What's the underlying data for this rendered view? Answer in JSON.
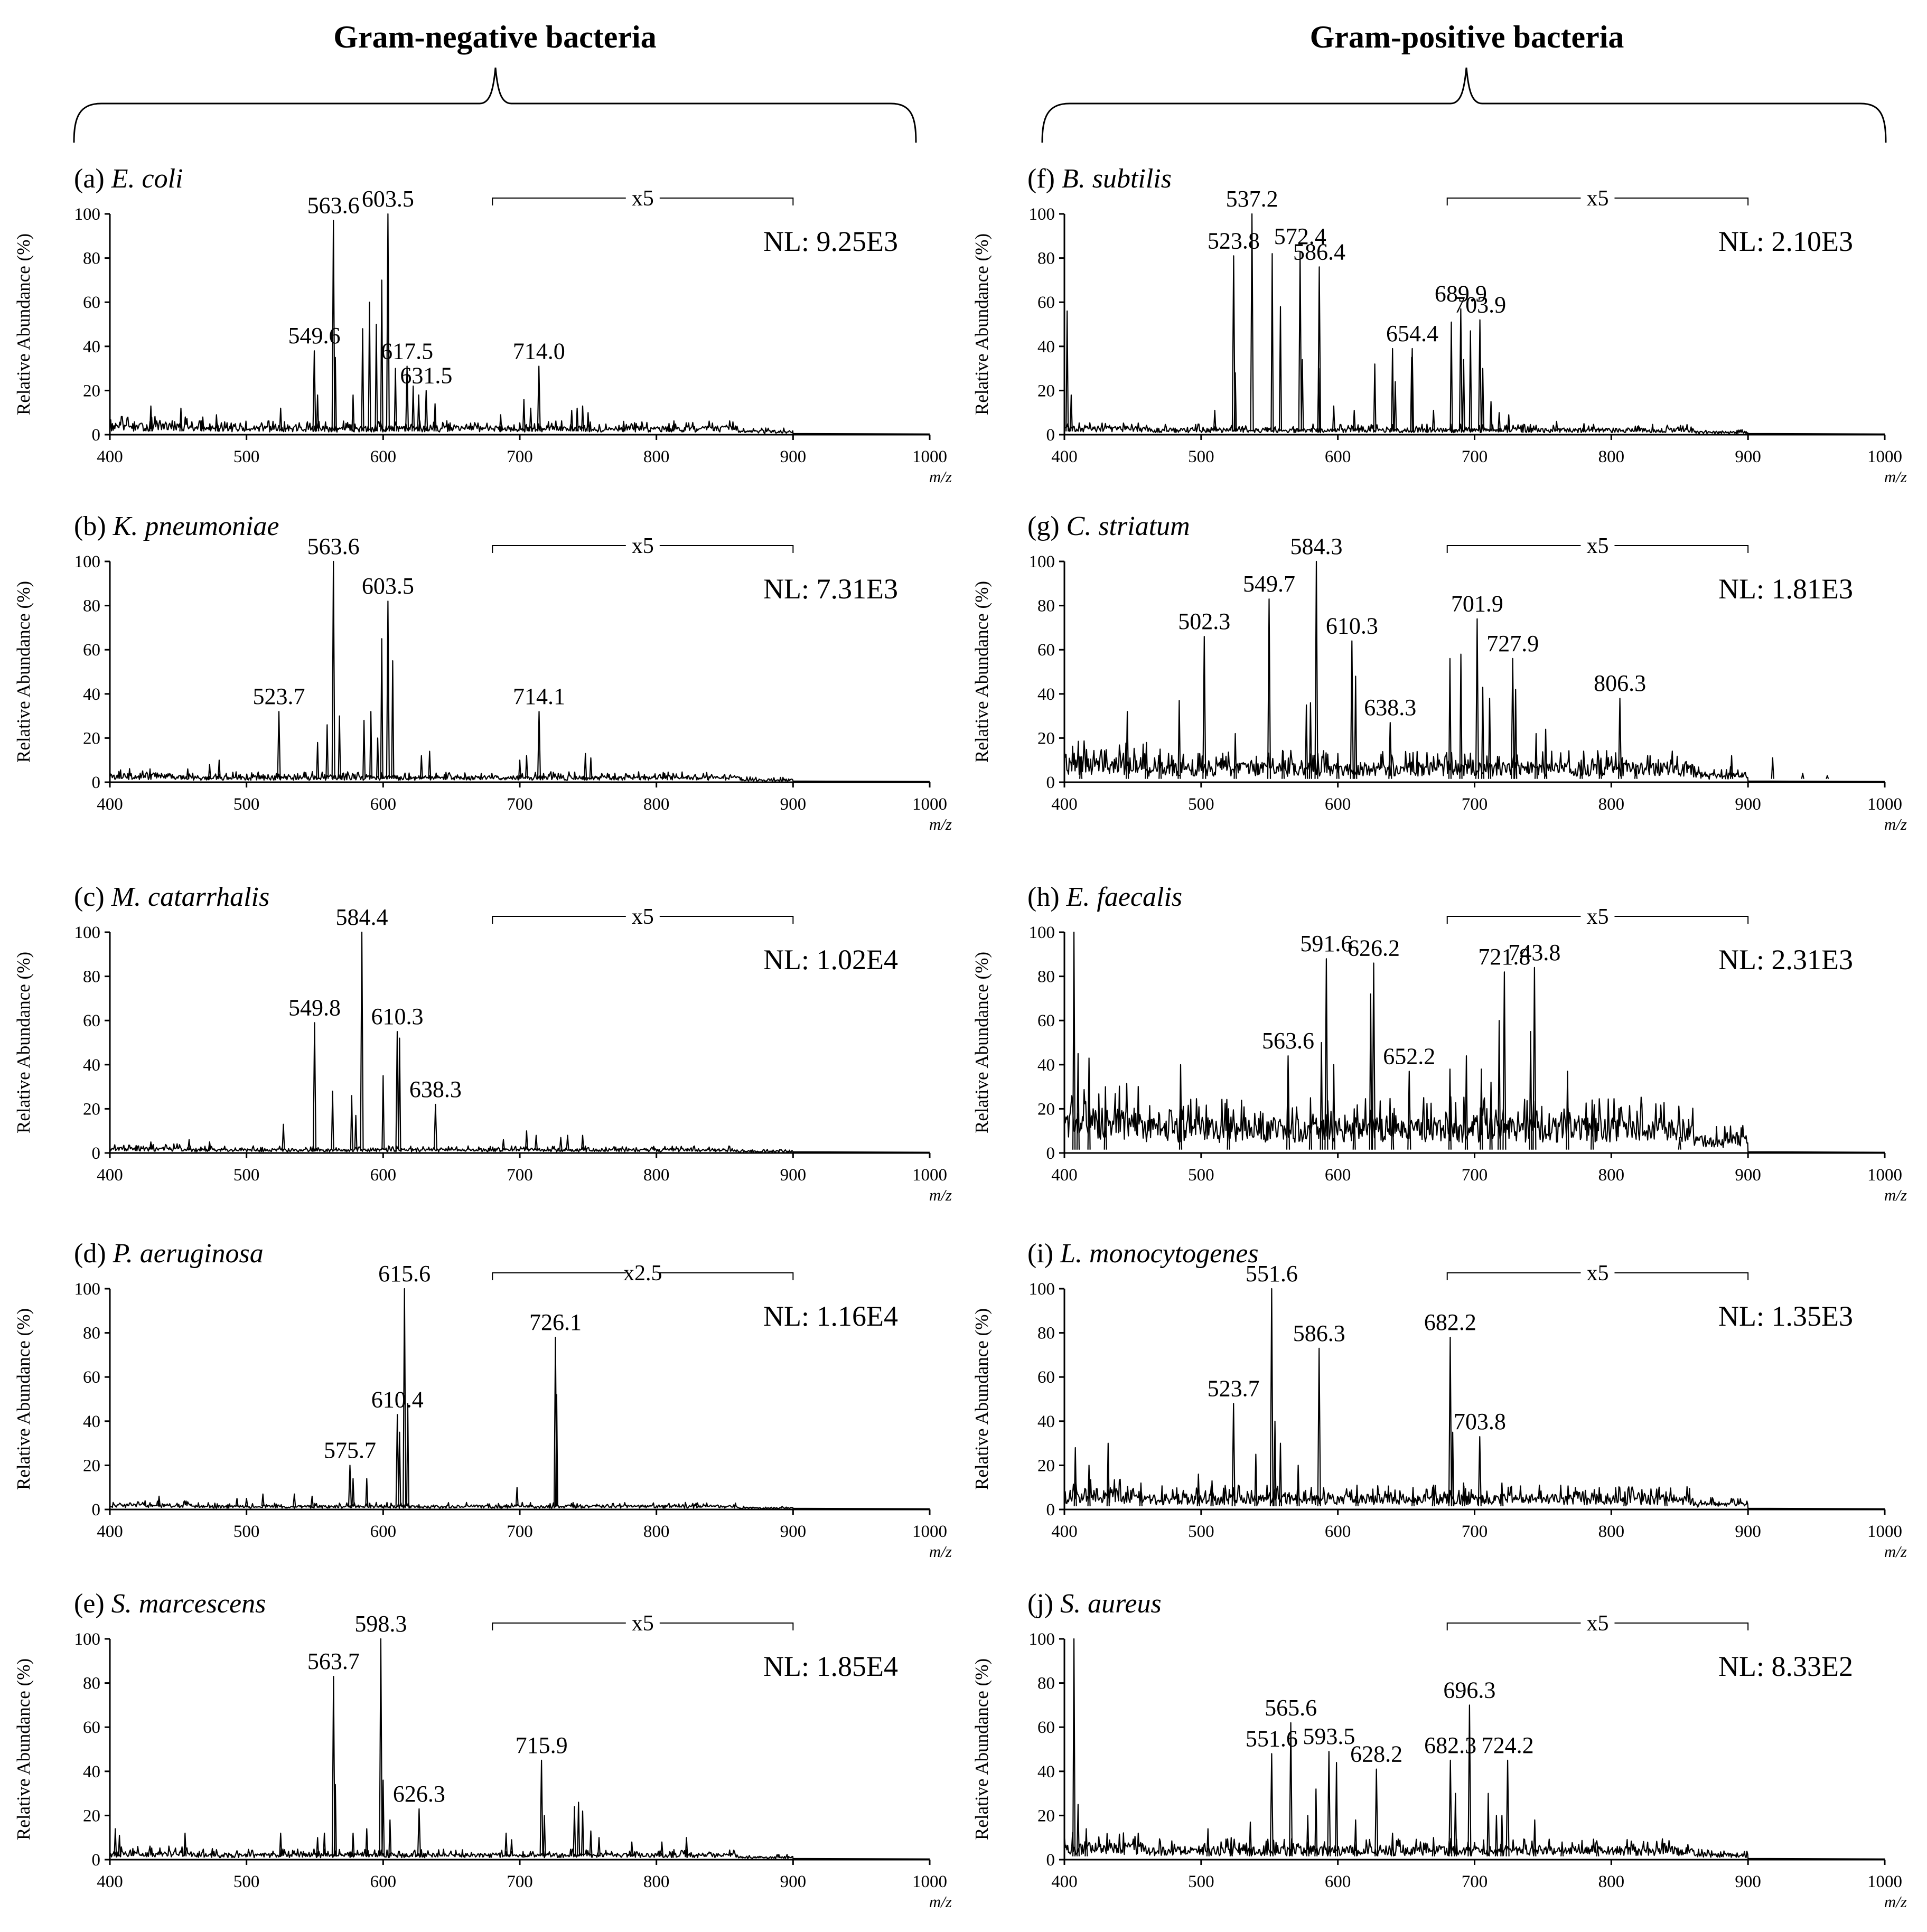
{
  "groups": [
    {
      "title": "Gram-negative bacteria"
    },
    {
      "title": "Gram-positive bacteria"
    }
  ],
  "axis": {
    "x_ticks": [
      "400",
      "500",
      "600",
      "700",
      "800",
      "900",
      "1000"
    ],
    "y_ticks": [
      "0",
      "20",
      "40",
      "60",
      "80",
      "100"
    ],
    "ylabel": "Relative Abundance (%)",
    "xlabel": "m/z",
    "xlim": [
      400,
      1000
    ],
    "ylim": [
      0,
      100
    ]
  },
  "chart_data": [
    {
      "type": "line",
      "panel": "(a)",
      "organism": "E. coli",
      "group": "Gram-negative bacteria",
      "nl": "NL: 9.25E3",
      "magnification": "x5",
      "mag_range": [
        680,
        900
      ],
      "noise": 4,
      "peaks": [
        [
          549.6,
          38,
          "549.6"
        ],
        [
          563.6,
          97,
          "563.6"
        ],
        [
          603.5,
          100,
          "603.5"
        ],
        [
          617.5,
          31,
          "617.5"
        ],
        [
          631.5,
          20,
          "631.5"
        ],
        [
          714.0,
          31,
          "714.0"
        ]
      ],
      "minor": [
        [
          430,
          13
        ],
        [
          452,
          12
        ],
        [
          468,
          8
        ],
        [
          478,
          9
        ],
        [
          525,
          12
        ],
        [
          552,
          18
        ],
        [
          565,
          35
        ],
        [
          578,
          18
        ],
        [
          585,
          48
        ],
        [
          590,
          60
        ],
        [
          595,
          50
        ],
        [
          599,
          70
        ],
        [
          609,
          30
        ],
        [
          622,
          22
        ],
        [
          626,
          18
        ],
        [
          638,
          14
        ],
        [
          686,
          9
        ],
        [
          703,
          16
        ],
        [
          708,
          12
        ],
        [
          738,
          11
        ],
        [
          742,
          12
        ],
        [
          746,
          13
        ],
        [
          750,
          10
        ],
        [
          776,
          6
        ],
        [
          812,
          4
        ]
      ]
    },
    {
      "type": "line",
      "panel": "(b)",
      "organism": "K. pneumoniae",
      "group": "Gram-negative bacteria",
      "nl": "NL: 7.31E3",
      "magnification": "x5",
      "mag_range": [
        680,
        900
      ],
      "noise": 3,
      "peaks": [
        [
          523.7,
          32,
          "523.7"
        ],
        [
          563.6,
          100,
          "563.6"
        ],
        [
          603.5,
          82,
          "603.5"
        ],
        [
          714.1,
          32,
          "714.1"
        ]
      ],
      "minor": [
        [
          457,
          6
        ],
        [
          473,
          8
        ],
        [
          480,
          10
        ],
        [
          552,
          18
        ],
        [
          559,
          26
        ],
        [
          568,
          30
        ],
        [
          586,
          28
        ],
        [
          591,
          32
        ],
        [
          596,
          20
        ],
        [
          599,
          65
        ],
        [
          607,
          55
        ],
        [
          628,
          12
        ],
        [
          634,
          14
        ],
        [
          700,
          10
        ],
        [
          705,
          12
        ],
        [
          748,
          13
        ],
        [
          752,
          11
        ],
        [
          806,
          4
        ]
      ]
    },
    {
      "type": "line",
      "panel": "(c)",
      "organism": "M. catarrhalis",
      "group": "Gram-negative bacteria",
      "nl": "NL: 1.02E4",
      "magnification": "x5",
      "mag_range": [
        680,
        900
      ],
      "noise": 2,
      "peaks": [
        [
          549.8,
          59,
          "549.8"
        ],
        [
          584.4,
          100,
          "584.4"
        ],
        [
          610.3,
          55,
          "610.3"
        ],
        [
          638.3,
          22,
          "638.3"
        ]
      ],
      "minor": [
        [
          430,
          5
        ],
        [
          458,
          6
        ],
        [
          473,
          5
        ],
        [
          527,
          13
        ],
        [
          563,
          28
        ],
        [
          577,
          26
        ],
        [
          580,
          17
        ],
        [
          600,
          35
        ],
        [
          612,
          52
        ],
        [
          688,
          6
        ],
        [
          705,
          10
        ],
        [
          712,
          8
        ],
        [
          730,
          7
        ],
        [
          735,
          8
        ],
        [
          746,
          8
        ],
        [
          798,
          3
        ]
      ]
    },
    {
      "type": "line",
      "panel": "(d)",
      "organism": "P. aeruginosa",
      "group": "Gram-negative bacteria",
      "nl": "NL: 1.16E4",
      "magnification": "x2.5",
      "mag_range": [
        680,
        900
      ],
      "noise": 2,
      "peaks": [
        [
          575.7,
          20,
          "575.7"
        ],
        [
          610.4,
          43,
          "610.4"
        ],
        [
          615.6,
          100,
          "615.6"
        ],
        [
          726.1,
          78,
          "726.1"
        ]
      ],
      "minor": [
        [
          436,
          6
        ],
        [
          493,
          5
        ],
        [
          500,
          5
        ],
        [
          512,
          7
        ],
        [
          535,
          7
        ],
        [
          548,
          6
        ],
        [
          578,
          14
        ],
        [
          588,
          14
        ],
        [
          612,
          35
        ],
        [
          618,
          48
        ],
        [
          698,
          10
        ],
        [
          727,
          52
        ],
        [
          830,
          3
        ]
      ]
    },
    {
      "type": "line",
      "panel": "(e)",
      "organism": "S. marcescens",
      "group": "Gram-negative bacteria",
      "nl": "NL: 1.85E4",
      "magnification": "x5",
      "mag_range": [
        680,
        900
      ],
      "noise": 3,
      "peaks": [
        [
          563.7,
          83,
          "563.7"
        ],
        [
          598.3,
          100,
          "598.3"
        ],
        [
          626.3,
          23,
          "626.3"
        ],
        [
          715.9,
          45,
          "715.9"
        ]
      ],
      "minor": [
        [
          404,
          14
        ],
        [
          407,
          11
        ],
        [
          455,
          12
        ],
        [
          475,
          5
        ],
        [
          525,
          12
        ],
        [
          552,
          10
        ],
        [
          557,
          12
        ],
        [
          565,
          34
        ],
        [
          578,
          12
        ],
        [
          588,
          14
        ],
        [
          600,
          36
        ],
        [
          605,
          18
        ],
        [
          690,
          12
        ],
        [
          694,
          9
        ],
        [
          718,
          20
        ],
        [
          740,
          24
        ],
        [
          743,
          26
        ],
        [
          746,
          22
        ],
        [
          752,
          13
        ],
        [
          758,
          10
        ],
        [
          782,
          8
        ],
        [
          804,
          8
        ],
        [
          822,
          10
        ]
      ]
    },
    {
      "type": "line",
      "panel": "(f)",
      "organism": "B. subtilis",
      "group": "Gram-positive bacteria",
      "nl": "NL: 2.10E3",
      "magnification": "x5",
      "mag_range": [
        680,
        900
      ],
      "noise": 3,
      "peaks": [
        [
          523.8,
          81,
          "523.8"
        ],
        [
          537.2,
          100,
          "537.2"
        ],
        [
          572.4,
          83,
          "572.4"
        ],
        [
          586.4,
          76,
          "586.4"
        ],
        [
          654.4,
          39,
          "654.4"
        ],
        [
          689.9,
          57,
          "689.9"
        ],
        [
          703.9,
          52,
          "703.9"
        ]
      ],
      "minor": [
        [
          402,
          56
        ],
        [
          405,
          18
        ],
        [
          510,
          11
        ],
        [
          525,
          28
        ],
        [
          552,
          82
        ],
        [
          558,
          58
        ],
        [
          574,
          34
        ],
        [
          586,
          30
        ],
        [
          597,
          13
        ],
        [
          612,
          11
        ],
        [
          627,
          32
        ],
        [
          640,
          39
        ],
        [
          642,
          24
        ],
        [
          654,
          35
        ],
        [
          670,
          11
        ],
        [
          683,
          51
        ],
        [
          692,
          34
        ],
        [
          697,
          47
        ],
        [
          706,
          30
        ],
        [
          712,
          15
        ],
        [
          718,
          10
        ],
        [
          725,
          9
        ],
        [
          760,
          6
        ],
        [
          780,
          5
        ],
        [
          820,
          4
        ]
      ]
    },
    {
      "type": "line",
      "panel": "(g)",
      "organism": "C. striatum",
      "group": "Gram-positive bacteria",
      "nl": "NL: 1.81E3",
      "magnification": "x5",
      "mag_range": [
        680,
        900
      ],
      "noise": 9,
      "peaks": [
        [
          502.3,
          66,
          "502.3"
        ],
        [
          549.7,
          83,
          "549.7"
        ],
        [
          584.3,
          100,
          "584.3"
        ],
        [
          610.3,
          64,
          "610.3"
        ],
        [
          638.3,
          27,
          "638.3"
        ],
        [
          701.9,
          74,
          "701.9"
        ],
        [
          727.9,
          56,
          "727.9"
        ],
        [
          806.3,
          38,
          "806.3"
        ]
      ],
      "minor": [
        [
          412,
          10
        ],
        [
          446,
          32
        ],
        [
          460,
          18
        ],
        [
          470,
          15
        ],
        [
          484,
          37
        ],
        [
          525,
          22
        ],
        [
          560,
          14
        ],
        [
          577,
          35
        ],
        [
          580,
          36
        ],
        [
          600,
          13
        ],
        [
          613,
          48
        ],
        [
          682,
          56
        ],
        [
          690,
          58
        ],
        [
          706,
          43
        ],
        [
          711,
          38
        ],
        [
          730,
          42
        ],
        [
          745,
          22
        ],
        [
          752,
          24
        ],
        [
          778,
          10
        ],
        [
          792,
          10
        ],
        [
          818,
          8
        ],
        [
          888,
          12
        ],
        [
          918,
          11
        ],
        [
          940,
          4
        ],
        [
          958,
          3
        ]
      ]
    },
    {
      "type": "line",
      "panel": "(h)",
      "organism": "E. faecalis",
      "group": "Gram-positive bacteria",
      "nl": "NL: 2.31E3",
      "magnification": "x5",
      "mag_range": [
        680,
        900
      ],
      "noise": 16,
      "peaks": [
        [
          563.6,
          44,
          "563.6"
        ],
        [
          591.6,
          88,
          "591.6"
        ],
        [
          626.2,
          86,
          "626.2"
        ],
        [
          652.2,
          37,
          "652.2"
        ],
        [
          721.8,
          82,
          "721.8"
        ],
        [
          743.8,
          84,
          "743.8"
        ]
      ],
      "minor": [
        [
          407,
          100
        ],
        [
          410,
          45
        ],
        [
          418,
          43
        ],
        [
          430,
          30
        ],
        [
          485,
          40
        ],
        [
          520,
          20
        ],
        [
          580,
          25
        ],
        [
          588,
          50
        ],
        [
          597,
          40
        ],
        [
          612,
          20
        ],
        [
          624,
          72
        ],
        [
          640,
          18
        ],
        [
          682,
          38
        ],
        [
          694,
          44
        ],
        [
          705,
          38
        ],
        [
          712,
          32
        ],
        [
          718,
          60
        ],
        [
          741,
          55
        ],
        [
          768,
          37
        ],
        [
          786,
          24
        ],
        [
          850,
          7
        ]
      ]
    },
    {
      "type": "line",
      "panel": "(i)",
      "organism": "L. monocytogenes",
      "group": "Gram-positive bacteria",
      "nl": "NL: 1.35E3",
      "magnification": "x5",
      "mag_range": [
        680,
        900
      ],
      "noise": 7,
      "peaks": [
        [
          523.7,
          48,
          "523.7"
        ],
        [
          551.6,
          100,
          "551.6"
        ],
        [
          586.3,
          73,
          "586.3"
        ],
        [
          682.2,
          78,
          "682.2"
        ],
        [
          703.8,
          33,
          "703.8"
        ]
      ],
      "minor": [
        [
          408,
          28
        ],
        [
          418,
          20
        ],
        [
          432,
          30
        ],
        [
          456,
          12
        ],
        [
          498,
          16
        ],
        [
          508,
          13
        ],
        [
          540,
          25
        ],
        [
          554,
          40
        ],
        [
          558,
          30
        ],
        [
          571,
          20
        ],
        [
          614,
          11
        ],
        [
          655,
          10
        ],
        [
          670,
          11
        ],
        [
          684,
          35
        ],
        [
          692,
          12
        ],
        [
          720,
          12
        ],
        [
          810,
          8
        ],
        [
          840,
          8
        ]
      ]
    },
    {
      "type": "line",
      "panel": "(j)",
      "organism": "S. aureus",
      "group": "Gram-positive bacteria",
      "nl": "NL: 8.33E2",
      "magnification": "x5",
      "mag_range": [
        680,
        900
      ],
      "noise": 6,
      "peaks": [
        [
          551.6,
          48,
          "551.6"
        ],
        [
          565.6,
          62,
          "565.6"
        ],
        [
          593.5,
          49,
          "593.5"
        ],
        [
          628.2,
          41,
          "628.2"
        ],
        [
          682.3,
          45,
          "682.3"
        ],
        [
          696.3,
          70,
          "696.3"
        ],
        [
          724.2,
          45,
          "724.2"
        ]
      ],
      "minor": [
        [
          407,
          100
        ],
        [
          410,
          25
        ],
        [
          416,
          14
        ],
        [
          505,
          14
        ],
        [
          522,
          10
        ],
        [
          536,
          17
        ],
        [
          578,
          20
        ],
        [
          584,
          32
        ],
        [
          599,
          44
        ],
        [
          613,
          18
        ],
        [
          640,
          12
        ],
        [
          670,
          10
        ],
        [
          686,
          30
        ],
        [
          710,
          30
        ],
        [
          716,
          20
        ],
        [
          720,
          20
        ],
        [
          744,
          18
        ],
        [
          764,
          8
        ],
        [
          790,
          6
        ]
      ]
    }
  ]
}
